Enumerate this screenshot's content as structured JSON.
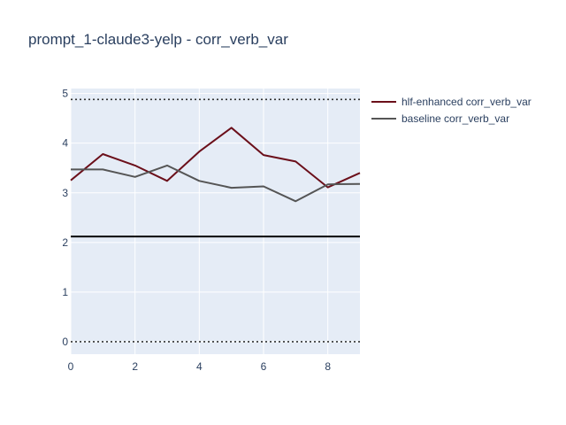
{
  "chart_data": {
    "type": "line",
    "title": "prompt_1-claude3-yelp - corr_verb_var",
    "xlabel": "",
    "ylabel": "",
    "xlim": [
      0,
      9
    ],
    "ylim": [
      -0.25,
      5.1
    ],
    "x_ticks": [
      0,
      2,
      4,
      6,
      8
    ],
    "y_ticks": [
      0,
      1,
      2,
      3,
      4,
      5
    ],
    "x": [
      0,
      1,
      2,
      3,
      4,
      5,
      6,
      7,
      8,
      9
    ],
    "series": [
      {
        "name": "hlf-enhanced corr_verb_var",
        "color": "#6b0f1a",
        "values": [
          3.25,
          3.78,
          3.55,
          3.24,
          3.83,
          4.31,
          3.76,
          3.63,
          3.11,
          3.4
        ]
      },
      {
        "name": "baseline corr_verb_var",
        "color": "#555555",
        "values": [
          3.47,
          3.47,
          3.32,
          3.55,
          3.24,
          3.1,
          3.13,
          2.83,
          3.17,
          3.18
        ]
      }
    ],
    "reference_lines": [
      {
        "y": 4.88,
        "style": "dotted",
        "color": "#333333"
      },
      {
        "y": 2.12,
        "style": "solid",
        "color": "#000000"
      },
      {
        "y": 0,
        "style": "dotted",
        "color": "#333333"
      }
    ],
    "grid": true,
    "legend_position": "top-right",
    "colors": {
      "plot_background": "#e5ecf6",
      "grid": "#ffffff",
      "text": "#2a3f5f"
    }
  }
}
